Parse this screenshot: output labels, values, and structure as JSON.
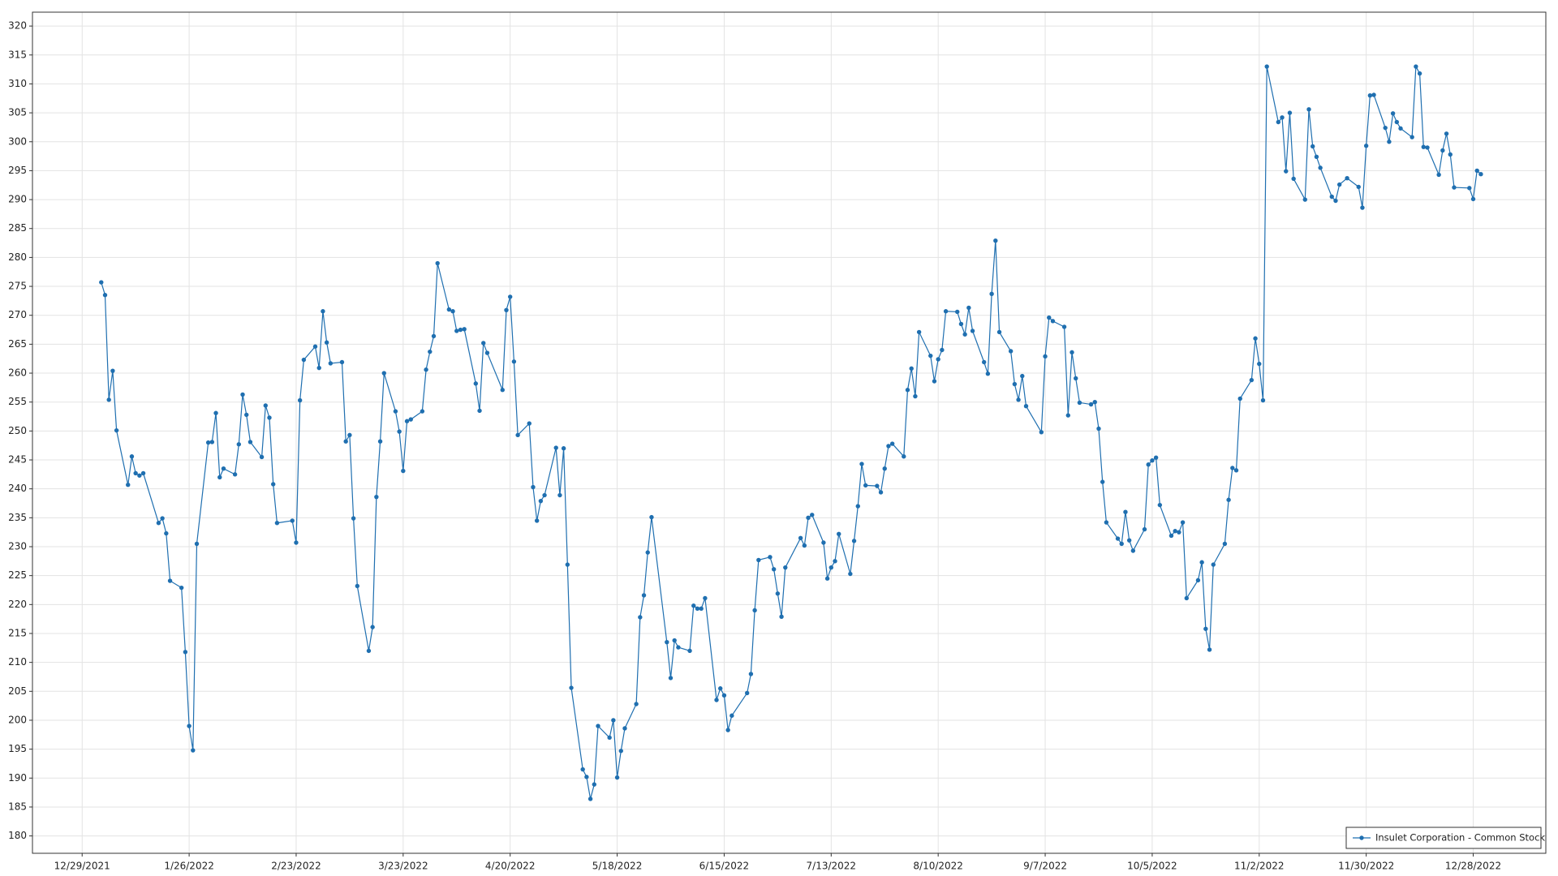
{
  "chart_data": {
    "type": "line",
    "x": [
      "1/3/2022",
      "1/4/2022",
      "1/5/2022",
      "1/6/2022",
      "1/7/2022",
      "1/10/2022",
      "1/11/2022",
      "1/12/2022",
      "1/13/2022",
      "1/14/2022",
      "1/18/2022",
      "1/19/2022",
      "1/20/2022",
      "1/21/2022",
      "1/24/2022",
      "1/25/2022",
      "1/26/2022",
      "1/27/2022",
      "1/28/2022",
      "1/31/2022",
      "2/1/2022",
      "2/2/2022",
      "2/3/2022",
      "2/4/2022",
      "2/7/2022",
      "2/8/2022",
      "2/9/2022",
      "2/10/2022",
      "2/11/2022",
      "2/14/2022",
      "2/15/2022",
      "2/16/2022",
      "2/17/2022",
      "2/18/2022",
      "2/22/2022",
      "2/23/2022",
      "2/24/2022",
      "2/25/2022",
      "2/28/2022",
      "3/1/2022",
      "3/2/2022",
      "3/3/2022",
      "3/4/2022",
      "3/7/2022",
      "3/8/2022",
      "3/9/2022",
      "3/10/2022",
      "3/11/2022",
      "3/14/2022",
      "3/15/2022",
      "3/16/2022",
      "3/17/2022",
      "3/18/2022",
      "3/21/2022",
      "3/22/2022",
      "3/23/2022",
      "3/24/2022",
      "3/25/2022",
      "3/28/2022",
      "3/29/2022",
      "3/30/2022",
      "3/31/2022",
      "4/1/2022",
      "4/4/2022",
      "4/5/2022",
      "4/6/2022",
      "4/7/2022",
      "4/8/2022",
      "4/11/2022",
      "4/12/2022",
      "4/13/2022",
      "4/14/2022",
      "4/18/2022",
      "4/19/2022",
      "4/20/2022",
      "4/21/2022",
      "4/22/2022",
      "4/25/2022",
      "4/26/2022",
      "4/27/2022",
      "4/28/2022",
      "4/29/2022",
      "5/2/2022",
      "5/3/2022",
      "5/4/2022",
      "5/5/2022",
      "5/6/2022",
      "5/9/2022",
      "5/10/2022",
      "5/11/2022",
      "5/12/2022",
      "5/13/2022",
      "5/16/2022",
      "5/17/2022",
      "5/18/2022",
      "5/19/2022",
      "5/20/2022",
      "5/23/2022",
      "5/24/2022",
      "5/25/2022",
      "5/26/2022",
      "5/27/2022",
      "5/31/2022",
      "6/1/2022",
      "6/2/2022",
      "6/3/2022",
      "6/6/2022",
      "6/7/2022",
      "6/8/2022",
      "6/9/2022",
      "6/10/2022",
      "6/13/2022",
      "6/14/2022",
      "6/15/2022",
      "6/16/2022",
      "6/17/2022",
      "6/21/2022",
      "6/22/2022",
      "6/23/2022",
      "6/24/2022",
      "6/27/2022",
      "6/28/2022",
      "6/29/2022",
      "6/30/2022",
      "7/1/2022",
      "7/5/2022",
      "7/6/2022",
      "7/7/2022",
      "7/8/2022",
      "7/11/2022",
      "7/12/2022",
      "7/13/2022",
      "7/14/2022",
      "7/15/2022",
      "7/18/2022",
      "7/19/2022",
      "7/20/2022",
      "7/21/2022",
      "7/22/2022",
      "7/25/2022",
      "7/26/2022",
      "7/27/2022",
      "7/28/2022",
      "7/29/2022",
      "8/1/2022",
      "8/2/2022",
      "8/3/2022",
      "8/4/2022",
      "8/5/2022",
      "8/8/2022",
      "8/9/2022",
      "8/10/2022",
      "8/11/2022",
      "8/12/2022",
      "8/15/2022",
      "8/16/2022",
      "8/17/2022",
      "8/18/2022",
      "8/19/2022",
      "8/22/2022",
      "8/23/2022",
      "8/24/2022",
      "8/25/2022",
      "8/26/2022",
      "8/29/2022",
      "8/30/2022",
      "8/31/2022",
      "9/1/2022",
      "9/2/2022",
      "9/6/2022",
      "9/7/2022",
      "9/8/2022",
      "9/9/2022",
      "9/12/2022",
      "9/13/2022",
      "9/14/2022",
      "9/15/2022",
      "9/16/2022",
      "9/19/2022",
      "9/20/2022",
      "9/21/2022",
      "9/22/2022",
      "9/23/2022",
      "9/26/2022",
      "9/27/2022",
      "9/28/2022",
      "9/29/2022",
      "9/30/2022",
      "10/3/2022",
      "10/4/2022",
      "10/5/2022",
      "10/6/2022",
      "10/7/2022",
      "10/10/2022",
      "10/11/2022",
      "10/12/2022",
      "10/13/2022",
      "10/14/2022",
      "10/17/2022",
      "10/18/2022",
      "10/19/2022",
      "10/20/2022",
      "10/21/2022",
      "10/24/2022",
      "10/25/2022",
      "10/26/2022",
      "10/27/2022",
      "10/28/2022",
      "10/31/2022",
      "11/1/2022",
      "11/2/2022",
      "11/3/2022",
      "11/4/2022",
      "11/7/2022",
      "11/8/2022",
      "11/9/2022",
      "11/10/2022",
      "11/11/2022",
      "11/14/2022",
      "11/15/2022",
      "11/16/2022",
      "11/17/2022",
      "11/18/2022",
      "11/21/2022",
      "11/22/2022",
      "11/23/2022",
      "11/25/2022",
      "11/28/2022",
      "11/29/2022",
      "11/30/2022",
      "12/1/2022",
      "12/2/2022",
      "12/5/2022",
      "12/6/2022",
      "12/7/2022",
      "12/8/2022",
      "12/9/2022",
      "12/12/2022",
      "12/13/2022",
      "12/14/2022",
      "12/15/2022",
      "12/16/2022",
      "12/19/2022",
      "12/20/2022",
      "12/21/2022",
      "12/22/2022",
      "12/23/2022",
      "12/27/2022",
      "12/28/2022",
      "12/29/2022",
      "12/30/2022"
    ],
    "series": [
      {
        "name": "Insulet Corporation - Common Stock",
        "color": "#1f6fb0",
        "values": [
          275.7,
          273.5,
          255.4,
          260.4,
          250.1,
          240.7,
          245.6,
          242.7,
          242.3,
          242.7,
          234.1,
          234.9,
          232.3,
          224.1,
          222.9,
          211.8,
          199.0,
          194.8,
          230.5,
          248.0,
          248.1,
          253.1,
          242.0,
          243.5,
          242.5,
          247.7,
          256.3,
          252.8,
          248.1,
          245.5,
          254.4,
          252.3,
          240.8,
          234.1,
          234.5,
          230.7,
          255.3,
          262.3,
          264.6,
          260.9,
          270.7,
          265.3,
          261.7,
          261.9,
          248.2,
          249.3,
          234.9,
          223.2,
          212.0,
          216.1,
          238.6,
          248.2,
          260.0,
          253.4,
          249.9,
          243.1,
          251.7,
          252.0,
          253.4,
          260.6,
          263.7,
          266.4,
          279.0,
          271.0,
          270.7,
          267.3,
          267.5,
          267.6,
          258.2,
          253.5,
          265.2,
          263.5,
          257.1,
          270.9,
          273.2,
          262.0,
          249.3,
          251.3,
          240.3,
          234.5,
          237.9,
          238.9,
          247.1,
          238.9,
          247.0,
          226.9,
          205.6,
          191.5,
          190.2,
          186.4,
          188.9,
          199.0,
          197.0,
          200.0,
          190.1,
          194.7,
          198.6,
          202.8,
          217.8,
          221.6,
          229.0,
          235.1,
          213.5,
          207.3,
          213.8,
          212.6,
          212.0,
          219.8,
          219.3,
          219.3,
          221.1,
          203.5,
          205.5,
          204.3,
          198.3,
          200.8,
          204.7,
          208.0,
          219.0,
          227.7,
          228.2,
          226.1,
          221.9,
          217.9,
          226.4,
          231.5,
          230.2,
          235.0,
          235.5,
          230.7,
          224.5,
          226.4,
          227.5,
          232.2,
          225.3,
          231.0,
          237.0,
          244.3,
          240.6,
          240.5,
          239.4,
          243.5,
          247.4,
          247.8,
          245.6,
          257.1,
          260.8,
          256.0,
          267.1,
          263.0,
          258.6,
          262.4,
          264.0,
          270.7,
          270.6,
          268.5,
          266.7,
          271.3,
          267.3,
          261.9,
          259.9,
          273.7,
          282.9,
          267.1,
          263.8,
          258.1,
          255.4,
          259.5,
          254.3,
          249.8,
          262.9,
          269.6,
          269.0,
          268.0,
          252.7,
          263.6,
          259.1,
          254.9,
          254.6,
          255.0,
          250.4,
          241.2,
          234.2,
          231.4,
          230.5,
          236.0,
          231.1,
          229.3,
          233.0,
          244.2,
          244.9,
          245.4,
          237.2,
          231.9,
          232.7,
          232.5,
          234.2,
          221.1,
          224.2,
          227.3,
          215.8,
          212.2,
          226.9,
          230.5,
          238.1,
          243.6,
          243.2,
          255.6,
          258.8,
          266.0,
          261.6,
          255.3,
          313.0,
          303.4,
          304.2,
          294.9,
          305.0,
          293.6,
          290.0,
          305.6,
          299.2,
          297.4,
          295.5,
          290.5,
          289.8,
          292.6,
          293.7,
          292.2,
          288.6,
          299.3,
          308.0,
          308.1,
          302.4,
          300.0,
          304.9,
          303.4,
          302.3,
          300.8,
          313.0,
          311.8,
          299.1,
          299.0,
          294.3,
          298.5,
          301.4,
          297.8,
          292.1,
          292.0,
          290.1,
          295.0,
          294.4
        ]
      }
    ],
    "xlim": [
      "12/16/2021",
      "1/16/2023"
    ],
    "xticks": [
      "12/29/2021",
      "1/26/2022",
      "2/23/2022",
      "3/23/2022",
      "4/20/2022",
      "5/18/2022",
      "6/15/2022",
      "7/13/2022",
      "8/10/2022",
      "9/7/2022",
      "10/5/2022",
      "11/2/2022",
      "11/30/2022",
      "12/28/2022"
    ],
    "ylim": [
      177,
      322.4
    ],
    "yticks": [
      180,
      185,
      190,
      195,
      200,
      205,
      210,
      215,
      220,
      225,
      230,
      235,
      240,
      245,
      250,
      255,
      260,
      265,
      270,
      275,
      280,
      285,
      290,
      295,
      300,
      305,
      310,
      315,
      320
    ],
    "grid": true,
    "markers": true,
    "legend_position": "lower right"
  }
}
